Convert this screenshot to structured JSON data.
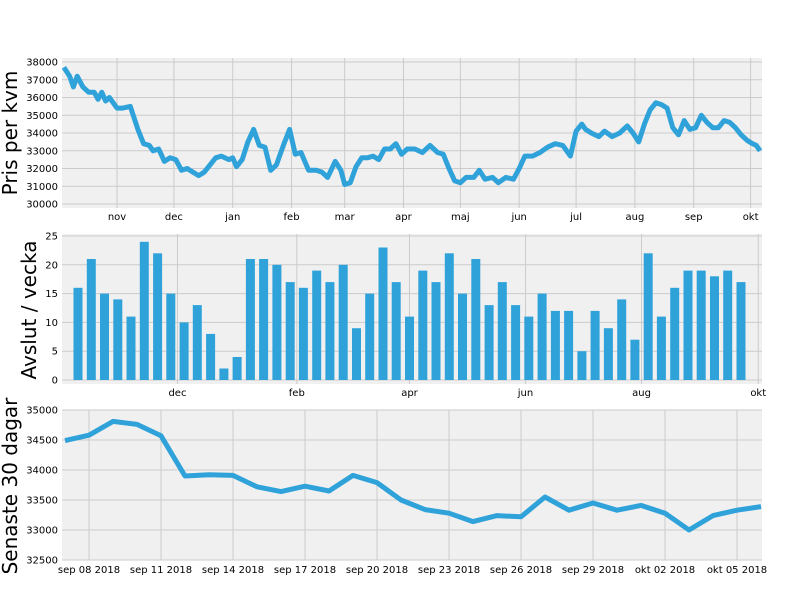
{
  "colors": {
    "series": "#30a2da",
    "background": "#f0f0f0",
    "grid": "#cbcbcb"
  },
  "chart_data": [
    {
      "type": "line",
      "ylabel": "Pris per kvm",
      "ylim": [
        30000,
        38000
      ],
      "yticks": [
        30000,
        31000,
        32000,
        33000,
        34000,
        35000,
        36000,
        37000,
        38000
      ],
      "x_start": "2017-10-04",
      "x_end": "2018-10-06",
      "x_ticks": [
        {
          "date": "2017-11-01",
          "label": "nov"
        },
        {
          "date": "2017-12-01",
          "label": "dec"
        },
        {
          "date": "2018-01-01",
          "label": "jan"
        },
        {
          "date": "2018-02-01",
          "label": "feb"
        },
        {
          "date": "2018-03-01",
          "label": "mar"
        },
        {
          "date": "2018-04-01",
          "label": "apr"
        },
        {
          "date": "2018-05-01",
          "label": "maj"
        },
        {
          "date": "2018-06-01",
          "label": "jun"
        },
        {
          "date": "2018-07-01",
          "label": "jul"
        },
        {
          "date": "2018-08-01",
          "label": "aug"
        },
        {
          "date": "2018-09-01",
          "label": "sep"
        },
        {
          "date": "2018-10-01",
          "label": "okt"
        }
      ],
      "grid": true,
      "points": [
        [
          "2017-10-04",
          37700
        ],
        [
          "2017-10-07",
          37200
        ],
        [
          "2017-10-09",
          36600
        ],
        [
          "2017-10-11",
          37200
        ],
        [
          "2017-10-14",
          36600
        ],
        [
          "2017-10-17",
          36300
        ],
        [
          "2017-10-20",
          36300
        ],
        [
          "2017-10-22",
          35900
        ],
        [
          "2017-10-24",
          36300
        ],
        [
          "2017-10-26",
          35800
        ],
        [
          "2017-10-28",
          36000
        ],
        [
          "2017-11-01",
          35400
        ],
        [
          "2017-11-04",
          35400
        ],
        [
          "2017-11-08",
          35500
        ],
        [
          "2017-11-12",
          34200
        ],
        [
          "2017-11-15",
          33400
        ],
        [
          "2017-11-18",
          33300
        ],
        [
          "2017-11-20",
          33000
        ],
        [
          "2017-11-23",
          33100
        ],
        [
          "2017-11-26",
          32400
        ],
        [
          "2017-11-29",
          32600
        ],
        [
          "2017-12-02",
          32500
        ],
        [
          "2017-12-05",
          31900
        ],
        [
          "2017-12-08",
          32000
        ],
        [
          "2017-12-11",
          31800
        ],
        [
          "2017-12-14",
          31600
        ],
        [
          "2017-12-17",
          31800
        ],
        [
          "2017-12-20",
          32200
        ],
        [
          "2017-12-23",
          32600
        ],
        [
          "2017-12-26",
          32700
        ],
        [
          "2017-12-30",
          32500
        ],
        [
          "2018-01-01",
          32600
        ],
        [
          "2018-01-03",
          32100
        ],
        [
          "2018-01-06",
          32500
        ],
        [
          "2018-01-09",
          33500
        ],
        [
          "2018-01-12",
          34200
        ],
        [
          "2018-01-15",
          33300
        ],
        [
          "2018-01-18",
          33200
        ],
        [
          "2018-01-21",
          31900
        ],
        [
          "2018-01-24",
          32200
        ],
        [
          "2018-01-28",
          33400
        ],
        [
          "2018-01-31",
          34200
        ],
        [
          "2018-02-03",
          32800
        ],
        [
          "2018-02-06",
          32900
        ],
        [
          "2018-02-10",
          31900
        ],
        [
          "2018-02-14",
          31900
        ],
        [
          "2018-02-17",
          31800
        ],
        [
          "2018-02-20",
          31500
        ],
        [
          "2018-02-24",
          32400
        ],
        [
          "2018-02-27",
          31900
        ],
        [
          "2018-03-01",
          31100
        ],
        [
          "2018-03-04",
          31200
        ],
        [
          "2018-03-07",
          32100
        ],
        [
          "2018-03-10",
          32600
        ],
        [
          "2018-03-13",
          32600
        ],
        [
          "2018-03-16",
          32700
        ],
        [
          "2018-03-19",
          32500
        ],
        [
          "2018-03-22",
          33100
        ],
        [
          "2018-03-25",
          33100
        ],
        [
          "2018-03-28",
          33400
        ],
        [
          "2018-03-31",
          32800
        ],
        [
          "2018-04-03",
          33100
        ],
        [
          "2018-04-07",
          33100
        ],
        [
          "2018-04-11",
          32900
        ],
        [
          "2018-04-15",
          33300
        ],
        [
          "2018-04-19",
          32900
        ],
        [
          "2018-04-22",
          32800
        ],
        [
          "2018-04-25",
          32000
        ],
        [
          "2018-04-28",
          31300
        ],
        [
          "2018-05-01",
          31200
        ],
        [
          "2018-05-04",
          31500
        ],
        [
          "2018-05-08",
          31500
        ],
        [
          "2018-05-11",
          31900
        ],
        [
          "2018-05-14",
          31400
        ],
        [
          "2018-05-18",
          31500
        ],
        [
          "2018-05-21",
          31200
        ],
        [
          "2018-05-25",
          31500
        ],
        [
          "2018-05-29",
          31400
        ],
        [
          "2018-06-01",
          32000
        ],
        [
          "2018-06-04",
          32700
        ],
        [
          "2018-06-08",
          32700
        ],
        [
          "2018-06-12",
          32900
        ],
        [
          "2018-06-16",
          33200
        ],
        [
          "2018-06-20",
          33400
        ],
        [
          "2018-06-24",
          33300
        ],
        [
          "2018-06-28",
          32700
        ],
        [
          "2018-07-01",
          34100
        ],
        [
          "2018-07-04",
          34500
        ],
        [
          "2018-07-06",
          34200
        ],
        [
          "2018-07-09",
          34000
        ],
        [
          "2018-07-13",
          33800
        ],
        [
          "2018-07-16",
          34100
        ],
        [
          "2018-07-20",
          33800
        ],
        [
          "2018-07-24",
          34000
        ],
        [
          "2018-07-28",
          34400
        ],
        [
          "2018-07-31",
          34000
        ],
        [
          "2018-08-03",
          33500
        ],
        [
          "2018-08-06",
          34500
        ],
        [
          "2018-08-09",
          35300
        ],
        [
          "2018-08-12",
          35700
        ],
        [
          "2018-08-15",
          35600
        ],
        [
          "2018-08-18",
          35400
        ],
        [
          "2018-08-21",
          34300
        ],
        [
          "2018-08-24",
          33900
        ],
        [
          "2018-08-27",
          34700
        ],
        [
          "2018-08-30",
          34200
        ],
        [
          "2018-09-02",
          34300
        ],
        [
          "2018-09-05",
          35000
        ],
        [
          "2018-09-08",
          34600
        ],
        [
          "2018-09-11",
          34300
        ],
        [
          "2018-09-14",
          34300
        ],
        [
          "2018-09-17",
          34700
        ],
        [
          "2018-09-20",
          34600
        ],
        [
          "2018-09-23",
          34300
        ],
        [
          "2018-09-26",
          33900
        ],
        [
          "2018-09-29",
          33600
        ],
        [
          "2018-10-02",
          33400
        ],
        [
          "2018-10-04",
          33300
        ],
        [
          "2018-10-06",
          33000
        ]
      ]
    },
    {
      "type": "bar",
      "ylabel": "Avslut / vecka",
      "ylim": [
        0,
        25
      ],
      "yticks": [
        0,
        5,
        10,
        15,
        20,
        25
      ],
      "x_ticks": [
        {
          "index": 7.5,
          "label": "dec"
        },
        {
          "index": 16.5,
          "label": "feb"
        },
        {
          "index": 25,
          "label": "apr"
        },
        {
          "index": 33.75,
          "label": "jun"
        },
        {
          "index": 42.5,
          "label": "aug"
        },
        {
          "index": 51.3,
          "label": "okt"
        }
      ],
      "grid": true,
      "values": [
        16,
        21,
        15,
        14,
        11,
        24,
        22,
        15,
        10,
        13,
        8,
        2,
        4,
        21,
        21,
        20,
        17,
        16,
        19,
        17,
        20,
        9,
        15,
        23,
        17,
        11,
        19,
        17,
        22,
        15,
        21,
        13,
        17,
        13,
        11,
        15,
        12,
        12,
        5,
        12,
        9,
        14,
        7,
        22,
        11,
        16,
        19,
        19,
        18,
        19,
        17
      ]
    },
    {
      "type": "line",
      "ylabel": "Senaste 30 dagar",
      "ylim": [
        32500,
        35000
      ],
      "yticks": [
        32500,
        33000,
        33500,
        34000,
        34500,
        35000
      ],
      "x_ticks": [
        "sep 08 2018",
        "sep 11 2018",
        "sep 14 2018",
        "sep 17 2018",
        "sep 20 2018",
        "sep 23 2018",
        "sep 26 2018",
        "sep 29 2018",
        "okt 02 2018",
        "okt 05 2018"
      ],
      "x_tick_day_offsets": [
        0,
        3,
        6,
        9,
        12,
        15,
        18,
        21,
        24,
        27
      ],
      "grid": true,
      "points": [
        [
          -1,
          34490
        ],
        [
          0,
          34580
        ],
        [
          1,
          34810
        ],
        [
          2,
          34760
        ],
        [
          3,
          34570
        ],
        [
          4,
          33900
        ],
        [
          5,
          33920
        ],
        [
          6,
          33910
        ],
        [
          7,
          33720
        ],
        [
          8,
          33640
        ],
        [
          9,
          33730
        ],
        [
          10,
          33650
        ],
        [
          11,
          33910
        ],
        [
          12,
          33790
        ],
        [
          13,
          33500
        ],
        [
          14,
          33340
        ],
        [
          15,
          33280
        ],
        [
          16,
          33140
        ],
        [
          17,
          33240
        ],
        [
          18,
          33220
        ],
        [
          19,
          33550
        ],
        [
          20,
          33330
        ],
        [
          21,
          33450
        ],
        [
          22,
          33330
        ],
        [
          23,
          33410
        ],
        [
          24,
          33280
        ],
        [
          25,
          33000
        ],
        [
          26,
          33240
        ],
        [
          27,
          33330
        ],
        [
          28,
          33390
        ]
      ]
    }
  ]
}
